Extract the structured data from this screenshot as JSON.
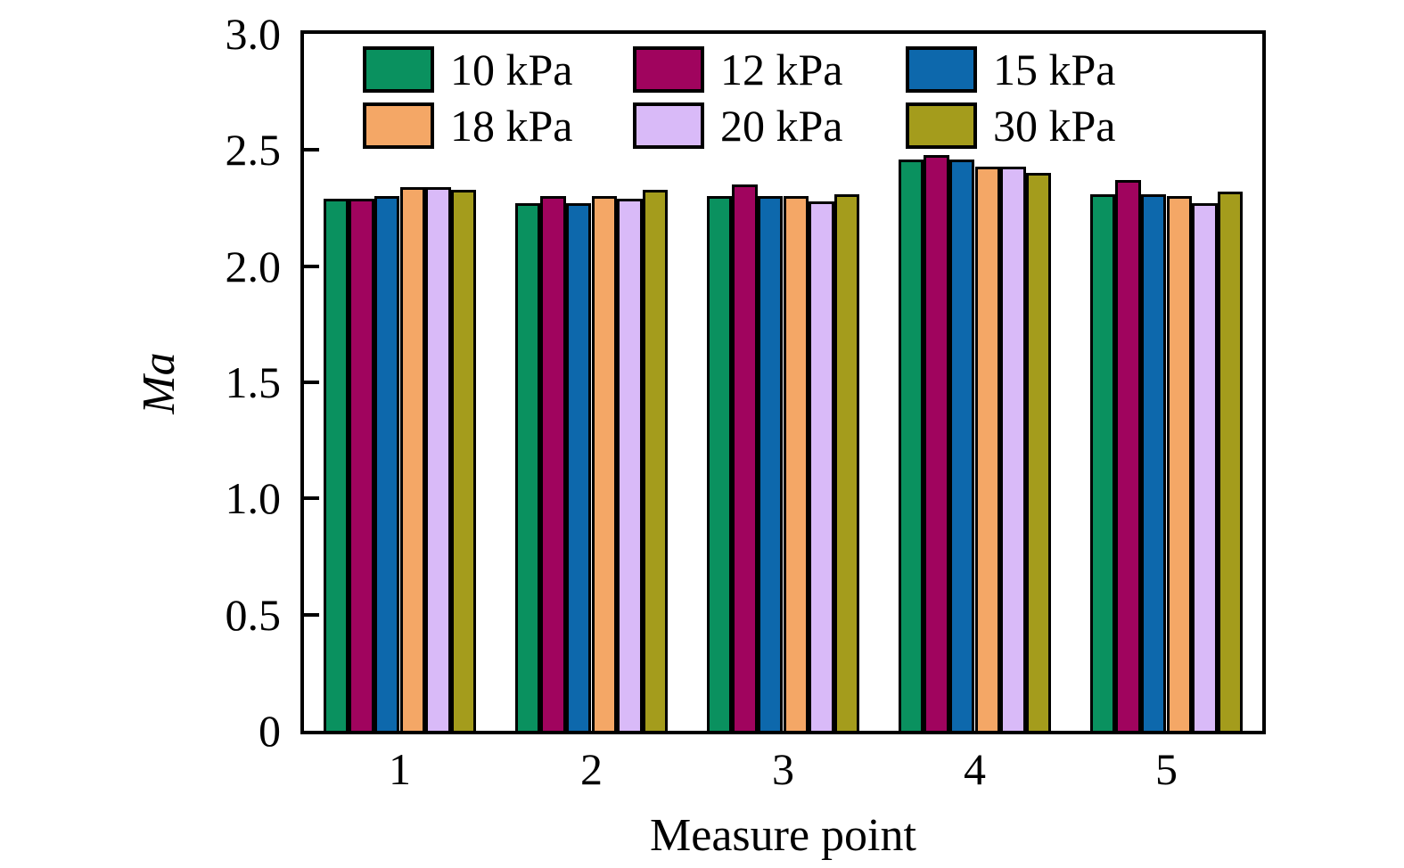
{
  "figure": {
    "background": "#ffffff",
    "xlabel": "Measure point",
    "ylabel": "Ma"
  },
  "chart_data": {
    "type": "bar",
    "title": "",
    "xlabel": "Measure point",
    "ylabel": "Ma",
    "categories": [
      "1",
      "2",
      "3",
      "4",
      "5"
    ],
    "series": [
      {
        "name": "10 kPa",
        "color": "#0a915f",
        "values": [
          2.29,
          2.27,
          2.3,
          2.46,
          2.31
        ]
      },
      {
        "name": "12 kPa",
        "color": "#a0045e",
        "values": [
          2.29,
          2.3,
          2.35,
          2.48,
          2.37
        ]
      },
      {
        "name": "15 kPa",
        "color": "#0d68ac",
        "values": [
          2.3,
          2.27,
          2.3,
          2.46,
          2.31
        ]
      },
      {
        "name": "18 kPa",
        "color": "#f4a766",
        "values": [
          2.34,
          2.3,
          2.3,
          2.43,
          2.3
        ]
      },
      {
        "name": "20 kPa",
        "color": "#d9baf8",
        "values": [
          2.34,
          2.29,
          2.28,
          2.43,
          2.27
        ]
      },
      {
        "name": "30 kPa",
        "color": "#a49c1c",
        "values": [
          2.33,
          2.33,
          2.31,
          2.4,
          2.32
        ]
      }
    ],
    "ylim": [
      0,
      3.0
    ],
    "yticks": [
      0,
      0.5,
      1.0,
      1.5,
      2.0,
      2.5,
      3.0
    ],
    "ytick_labels": [
      "0",
      "0.5",
      "1.0",
      "1.5",
      "2.0",
      "2.5",
      "3.0"
    ],
    "bar_edge_color": "#000000",
    "bar_group_fill_fraction": 0.8,
    "legend_position": "upper-left-inside",
    "legend_rows": [
      [
        "10 kPa",
        "12 kPa",
        "15 kPa"
      ],
      [
        "18 kPa",
        "20 kPa",
        "30 kPa"
      ]
    ],
    "grid": false
  }
}
